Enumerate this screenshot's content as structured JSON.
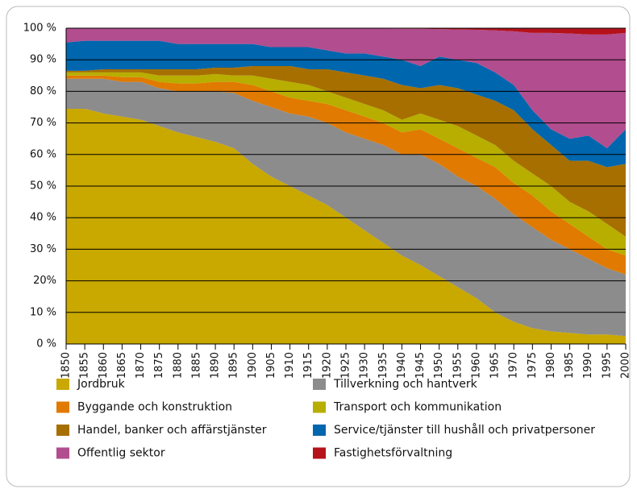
{
  "chart_data": {
    "type": "stacked_area",
    "x": [
      1850,
      1855,
      1860,
      1865,
      1870,
      1875,
      1880,
      1885,
      1890,
      1895,
      1900,
      1905,
      1910,
      1915,
      1920,
      1925,
      1930,
      1935,
      1940,
      1945,
      1950,
      1955,
      1960,
      1965,
      1970,
      1975,
      1980,
      1985,
      1990,
      1995,
      2000
    ],
    "xlim": [
      1850,
      2000
    ],
    "xticks": [
      1850,
      1855,
      1860,
      1865,
      1870,
      1875,
      1880,
      1885,
      1890,
      1895,
      1900,
      1905,
      1910,
      1915,
      1920,
      1925,
      1930,
      1935,
      1940,
      1945,
      1950,
      1955,
      1960,
      1965,
      1970,
      1975,
      1980,
      1985,
      1990,
      1995,
      2000
    ],
    "ylim": [
      0,
      100
    ],
    "yticks": [
      {
        "value": 0,
        "label": "0 %"
      },
      {
        "value": 10,
        "label": "10 %"
      },
      {
        "value": 20,
        "label": "20%"
      },
      {
        "value": 30,
        "label": "30 %"
      },
      {
        "value": 40,
        "label": "40 %"
      },
      {
        "value": 50,
        "label": "50 %"
      },
      {
        "value": 60,
        "label": "60 %"
      },
      {
        "value": 70,
        "label": "70 %"
      },
      {
        "value": 80,
        "label": "80 %"
      },
      {
        "value": 90,
        "label": "90 %"
      },
      {
        "value": 100,
        "label": "100 %"
      }
    ],
    "grid": true,
    "series": [
      {
        "name": "Jordbruk",
        "color": "#c9a800",
        "values": [
          74.5,
          74.5,
          73,
          72,
          71,
          69,
          67,
          65.5,
          64,
          62,
          57,
          53,
          50,
          47,
          44,
          40,
          36,
          32,
          28,
          25,
          21.5,
          18,
          14.5,
          10,
          7,
          5,
          4,
          3.5,
          3,
          3,
          2.5
        ]
      },
      {
        "name": "Tillverkning och hantverk",
        "color": "#8c8c8c",
        "values": [
          9.5,
          9.5,
          11,
          11,
          12,
          12,
          13,
          14.5,
          16,
          17.5,
          20,
          22,
          23,
          25,
          26,
          27,
          29,
          31,
          32,
          35,
          35.5,
          35,
          35.5,
          36,
          34,
          32,
          29,
          26.5,
          24,
          21,
          19.5
        ]
      },
      {
        "name": "Byggande och konstruktion",
        "color": "#e07a00",
        "values": [
          1,
          1,
          1,
          1.5,
          1.5,
          2,
          2.5,
          2.5,
          3,
          3.5,
          5,
          5,
          5,
          5,
          6,
          7,
          7,
          7,
          7,
          8,
          8,
          9,
          9,
          10,
          10,
          10,
          9,
          8,
          7,
          6,
          6
        ]
      },
      {
        "name": "Transport och kommunikation",
        "color": "#b7ae00",
        "values": [
          1,
          1,
          1,
          1.5,
          1.5,
          2,
          2.5,
          2.5,
          2.5,
          2,
          3,
          4,
          5,
          5,
          4,
          4,
          4,
          4,
          4,
          5,
          6,
          7,
          7,
          7,
          7,
          7,
          8,
          7,
          8,
          8,
          6
        ]
      },
      {
        "name": "Handel, banker och affärstjänster",
        "color": "#a76f00",
        "values": [
          0.5,
          0.5,
          1,
          1,
          1,
          2,
          2,
          2,
          2,
          2.5,
          3,
          4,
          5,
          5,
          7,
          8,
          9,
          10,
          11,
          8,
          11,
          12,
          13,
          14,
          16,
          14,
          13,
          13,
          16,
          18,
          23
        ]
      },
      {
        "name": "Service/tjänster till hushåll och privatpersoner",
        "color": "#0066ad",
        "values": [
          9,
          9.5,
          9,
          9,
          9,
          9,
          8,
          8,
          7.5,
          7.5,
          7,
          6,
          6,
          7,
          6,
          6,
          7,
          7,
          8,
          7,
          9,
          9,
          10,
          9,
          8,
          6,
          5,
          7,
          8,
          6,
          11
        ]
      },
      {
        "name": "Offentlig sektor",
        "color": "#b24d8f",
        "values": [
          4.5,
          4,
          4,
          4,
          4,
          4,
          5,
          5,
          5,
          5,
          5,
          6,
          6,
          6,
          7,
          8,
          8,
          8.9,
          9.8,
          11.8,
          8.7,
          9.6,
          10.5,
          13.3,
          17,
          24.5,
          30.5,
          33.3,
          32,
          36,
          30.5
        ]
      },
      {
        "name": "Fastighetsförvaltning",
        "color": "#b5121b",
        "values": [
          0,
          0,
          0,
          0,
          0,
          0,
          0,
          0,
          0,
          0,
          0,
          0,
          0,
          0,
          0,
          0,
          0,
          0.1,
          0.2,
          0.2,
          0.3,
          0.4,
          0.5,
          0.7,
          1,
          1.5,
          1.5,
          1.7,
          2,
          2,
          1.5
        ]
      }
    ]
  }
}
